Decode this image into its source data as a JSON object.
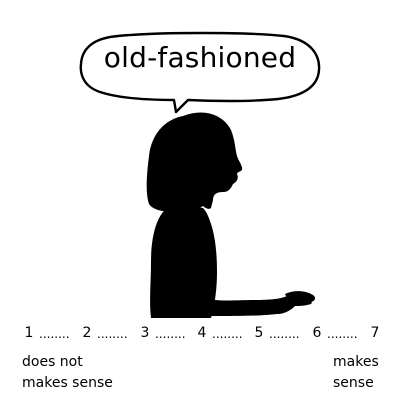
{
  "prompt_word": "old-fashioned",
  "scale": {
    "points": [
      "1",
      "2",
      "3",
      "4",
      "5",
      "6",
      "7"
    ],
    "separator": "........"
  },
  "anchors": {
    "low": {
      "line1": "does not",
      "line2": "makes sense"
    },
    "high": {
      "line1": "makes",
      "line2": "sense"
    }
  },
  "colors": {
    "background": "#ffffff",
    "silhouette": "#000000",
    "text": "#000000"
  },
  "icons": {
    "speech_bubble": "speech-bubble-icon",
    "person": "person-silhouette-icon"
  }
}
